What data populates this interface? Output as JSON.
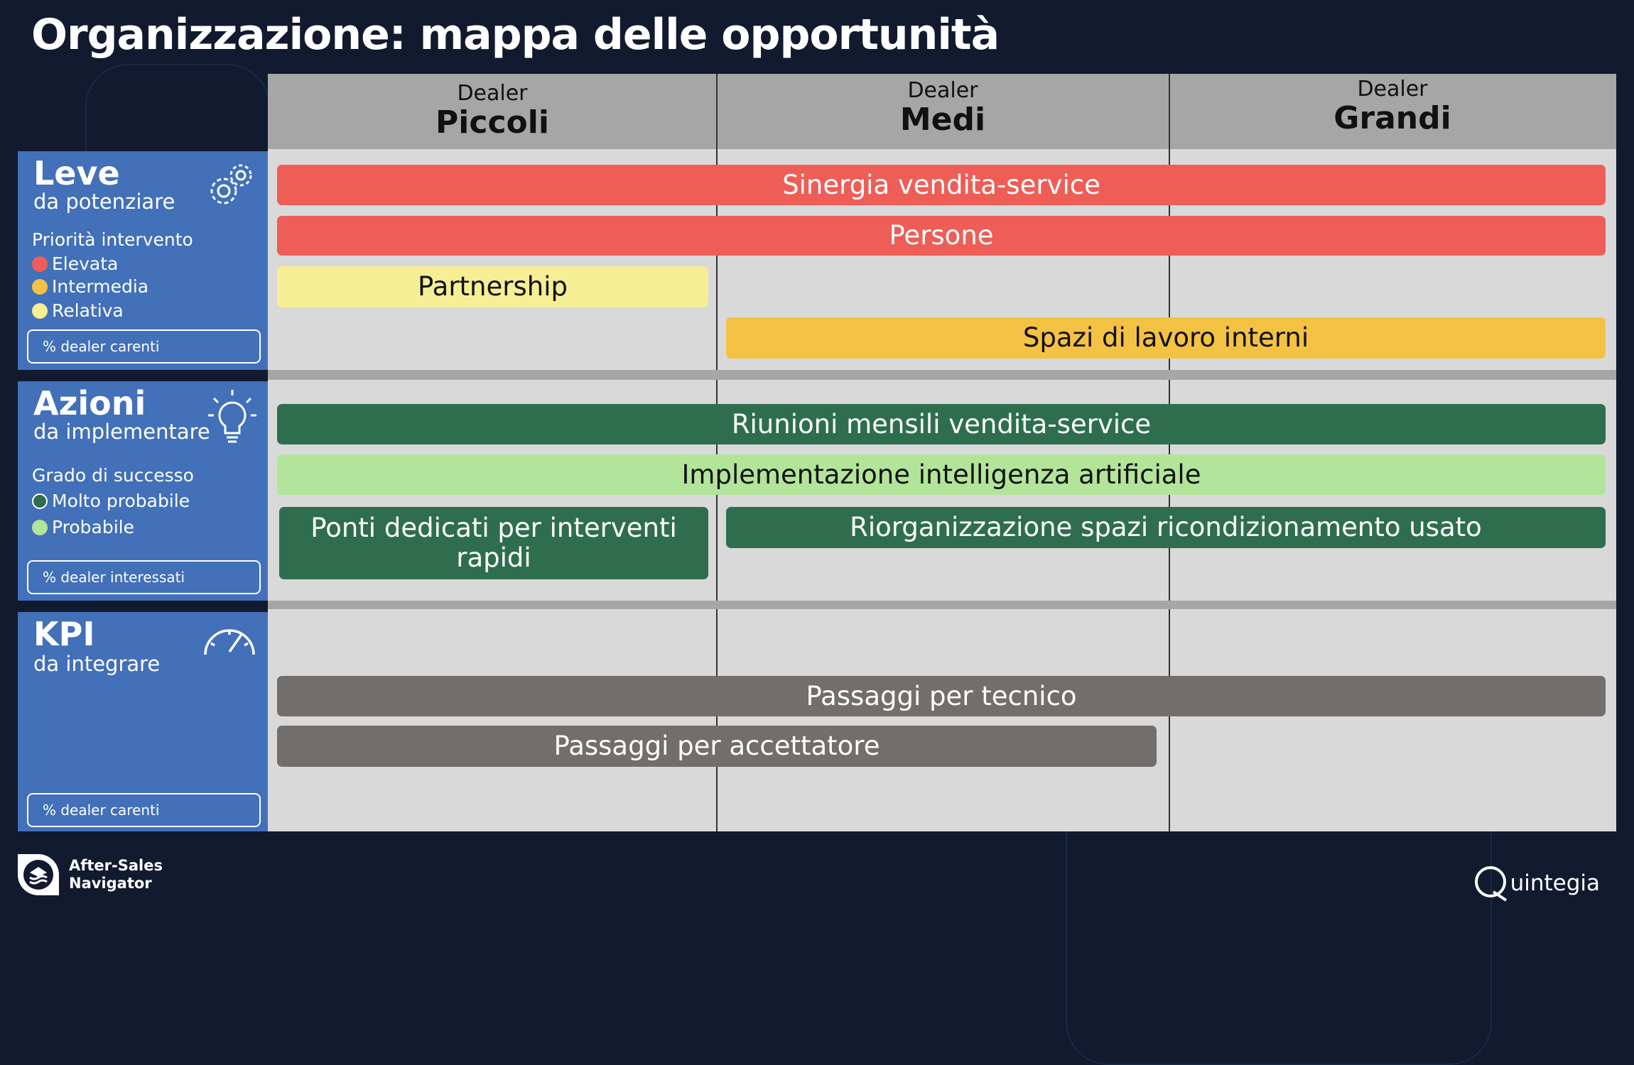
{
  "title": "Organizzazione: mappa delle opportunità",
  "columns": [
    {
      "small": "Dealer",
      "big": "Piccoli"
    },
    {
      "small": "Dealer",
      "big": "Medi"
    },
    {
      "small": "Dealer",
      "big": "Grandi"
    }
  ],
  "sections": {
    "leve": {
      "title": "Leve",
      "subtitle": "da potenziare",
      "legend_title": "Priorità intervento",
      "legend": [
        {
          "label": "Elevata",
          "color": "#ee5e57"
        },
        {
          "label": "Intermedia",
          "color": "#f4c242"
        },
        {
          "label": "Relativa",
          "color": "#f5ee94"
        }
      ],
      "box": "% dealer carenti",
      "icon": "gears-icon"
    },
    "azioni": {
      "title": "Azioni",
      "subtitle": "da implementare",
      "legend_title": "Grado di successo",
      "legend": [
        {
          "label": "Molto probabile",
          "color": "#2e6e4e"
        },
        {
          "label": "Probabile",
          "color": "#b2e59a"
        }
      ],
      "box": "% dealer interessati",
      "icon": "lightbulb-icon"
    },
    "kpi": {
      "title": "KPI",
      "subtitle": "da integrare",
      "box": "% dealer carenti",
      "icon": "speedometer-icon"
    }
  },
  "bars": [
    {
      "label": "Sinergia vendita-service",
      "color": "#ee5e57",
      "text": "#ffffff"
    },
    {
      "label": "Persone",
      "color": "#ee5e57",
      "text": "#ffffff"
    },
    {
      "label": "Partnership",
      "color": "#f5ee94",
      "text": "#111111"
    },
    {
      "label": "Spazi di lavoro interni",
      "color": "#f4c242",
      "text": "#111111"
    },
    {
      "label": "Riunioni mensili vendita-service",
      "color": "#2e6e4e",
      "text": "#ffffff"
    },
    {
      "label": "Implementazione intelligenza artificiale",
      "color": "#b2e59a",
      "text": "#111111"
    },
    {
      "label": "Ponti dedicati per interventi rapidi",
      "color": "#2e6e4e",
      "text": "#ffffff"
    },
    {
      "label": "Riorganizzazione spazi ricondizionamento usato",
      "color": "#2e6e4e",
      "text": "#ffffff"
    },
    {
      "label": "Passaggi per tecnico",
      "color": "#716e6c",
      "text": "#ffffff"
    },
    {
      "label": "Passaggi per accettatore",
      "color": "#716e6c",
      "text": "#ffffff"
    }
  ],
  "footer": {
    "brand_line1": "After-Sales",
    "brand_line2": "Navigator",
    "company": "uintegia",
    "company_logo": "Quintegia"
  }
}
